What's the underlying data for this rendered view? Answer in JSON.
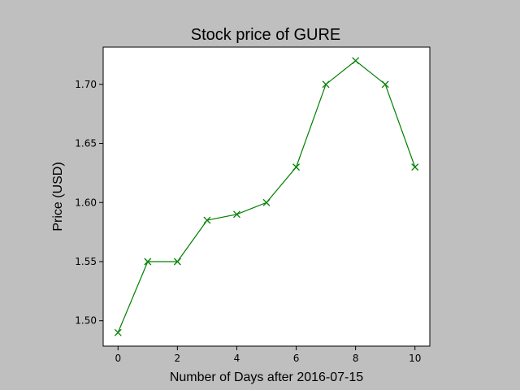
{
  "chart_data": {
    "type": "line",
    "title": "Stock price of GURE",
    "xlabel": "Number of Days after 2016-07-15",
    "ylabel": "Price (USD)",
    "xlim": [
      -0.5,
      10.5
    ],
    "ylim": [
      1.4785,
      1.7315
    ],
    "xticks": [
      0,
      2,
      4,
      6,
      8,
      10
    ],
    "xtick_labels": [
      "0",
      "2",
      "4",
      "6",
      "8",
      "10"
    ],
    "yticks": [
      1.5,
      1.55,
      1.6,
      1.65,
      1.7
    ],
    "ytick_labels": [
      "1.50",
      "1.55",
      "1.60",
      "1.65",
      "1.70"
    ],
    "grid": false,
    "series": [
      {
        "x": [
          0,
          1,
          2,
          3,
          4,
          5,
          6,
          7,
          8,
          9,
          10
        ],
        "y": [
          1.49,
          1.55,
          1.55,
          1.585,
          1.59,
          1.6,
          1.63,
          1.7,
          1.72,
          1.7,
          1.63
        ],
        "color": "#008000",
        "marker": "x"
      }
    ]
  }
}
